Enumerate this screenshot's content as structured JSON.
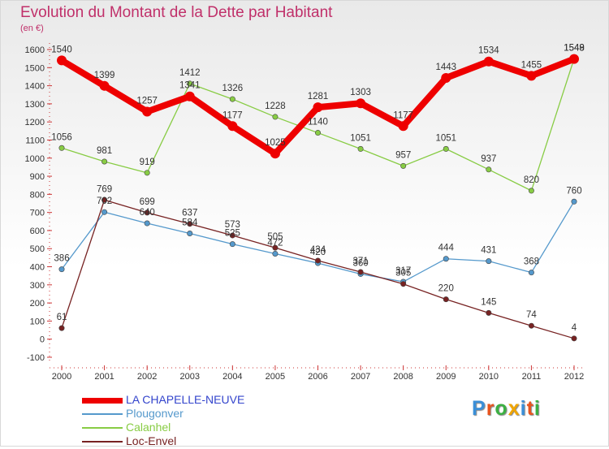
{
  "header": {
    "title": "Evolution du Montant de la Dette par Habitant",
    "unit": "(en €)"
  },
  "logo": {
    "letters": [
      "P",
      "r",
      "o",
      "x",
      "i",
      "t",
      "i"
    ],
    "colors": [
      "#3a8fd8",
      "#e8541e",
      "#3cb043",
      "#f0a500",
      "#3a8fd8",
      "#e8541e",
      "#3cb043"
    ]
  },
  "chart_data": {
    "type": "line",
    "title": "Evolution du Montant de la Dette par Habitant",
    "ylabel": "(en €)",
    "xlabel": "",
    "x": [
      "2000",
      "2001",
      "2002",
      "2003",
      "2004",
      "2005",
      "2006",
      "2007",
      "2008",
      "2009",
      "2010",
      "2011",
      "2012"
    ],
    "ylim": [
      -100,
      1600
    ],
    "yticks": [
      -100,
      0,
      100,
      200,
      300,
      400,
      500,
      600,
      700,
      800,
      900,
      1000,
      1100,
      1200,
      1300,
      1400,
      1500,
      1600
    ],
    "grid": false,
    "legend": "bottom-left",
    "series": [
      {
        "name": "LA CHAPELLE-NEUVE",
        "color": "#ee0000",
        "values": [
          1540,
          1399,
          1257,
          1341,
          1177,
          1025,
          1281,
          1303,
          1177,
          1443,
          1534,
          1455,
          1548
        ]
      },
      {
        "name": "Plougonver",
        "color": "#5599cc",
        "values": [
          386,
          702,
          640,
          584,
          525,
          472,
          420,
          360,
          317,
          444,
          431,
          368,
          760
        ]
      },
      {
        "name": "Calanhel",
        "color": "#88cc44",
        "values": [
          1056,
          981,
          919,
          1412,
          1326,
          1228,
          1140,
          1051,
          957,
          1051,
          937,
          820,
          1549
        ]
      },
      {
        "name": "Loc-Envel",
        "color": "#772222",
        "values": [
          61,
          769,
          699,
          637,
          573,
          505,
          434,
          371,
          305,
          220,
          145,
          74,
          4
        ]
      }
    ]
  }
}
